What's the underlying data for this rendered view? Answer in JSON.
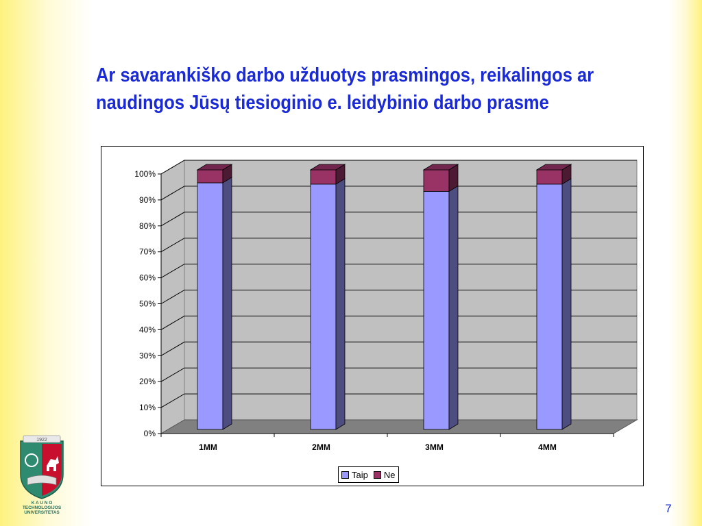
{
  "slide": {
    "title_line1": "Ar savarankiško darbo užduotys prasmingos, reikalingos ar",
    "title_line2": "naudingos Jūsų tiesioginio e. leidybinio darbo prasme",
    "page_number": "7"
  },
  "logo": {
    "year": "1922",
    "line1": "K A U N O",
    "line2": "TECHNOLOGIJOS",
    "line3": "UNIVERSITETAS"
  },
  "chart_data": {
    "type": "bar",
    "stacked": true,
    "percent_stacked": true,
    "three_d": true,
    "categories": [
      "1MM",
      "2MM",
      "3MM",
      "4MM"
    ],
    "series": [
      {
        "name": "Taip",
        "values": [
          95,
          94.5,
          91.7,
          94.5
        ],
        "color": "#9999ff"
      },
      {
        "name": "Ne",
        "values": [
          5,
          5.5,
          8.3,
          5.5
        ],
        "color": "#993366"
      }
    ],
    "y_ticks": [
      "0%",
      "10%",
      "20%",
      "30%",
      "40%",
      "50%",
      "60%",
      "70%",
      "80%",
      "90%",
      "100%"
    ],
    "ylim": [
      0,
      100
    ],
    "gridlines": true,
    "legend_position": "bottom",
    "colors": {
      "plot_wall": "#c0c0c0",
      "plot_floor": "#808080"
    }
  }
}
